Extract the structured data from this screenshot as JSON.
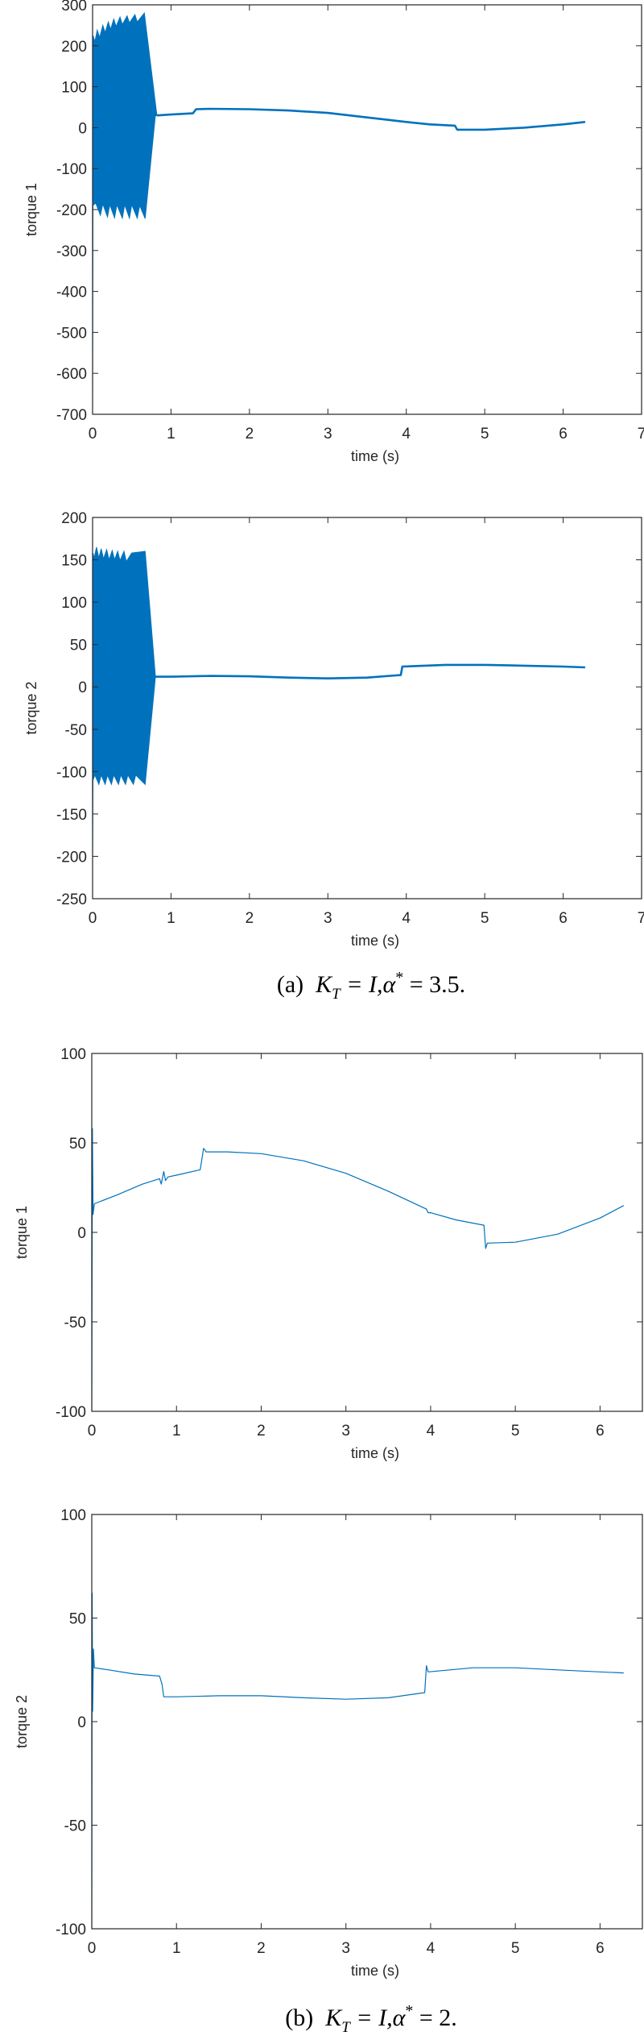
{
  "line_color": "#0072BD",
  "axis_color": "#262626",
  "captions": [
    {
      "label": "(a)",
      "var": "K",
      "sub": "T",
      "mid": "= I,α",
      "sup": "*",
      "rest": "= 3.5."
    },
    {
      "label": "(b)",
      "var": "K",
      "sub": "T",
      "mid": "= I,α",
      "sup": "*",
      "rest": "= 2."
    }
  ],
  "chart_data": [
    {
      "type": "line",
      "panel": "(a)",
      "xlabel": "time (s)",
      "ylabel": "torque 1",
      "xlim": [
        0,
        7
      ],
      "ylim": [
        -700,
        300
      ],
      "xticks": [
        "0",
        "1",
        "2",
        "3",
        "4",
        "5",
        "6",
        "7"
      ],
      "yticks": [
        "-700",
        "-600",
        "-500",
        "-400",
        "-300",
        "-200",
        "-100",
        "0",
        "100",
        "200",
        "300"
      ],
      "grid": false,
      "oscillation_band": {
        "upper": [
          [
            0,
            -700
          ],
          [
            0.005,
            225
          ],
          [
            0.03,
            210
          ],
          [
            0.06,
            238
          ],
          [
            0.09,
            220
          ],
          [
            0.13,
            250
          ],
          [
            0.16,
            232
          ],
          [
            0.2,
            258
          ],
          [
            0.23,
            240
          ],
          [
            0.27,
            265
          ],
          [
            0.3,
            247
          ],
          [
            0.35,
            270
          ],
          [
            0.38,
            252
          ],
          [
            0.44,
            273
          ],
          [
            0.47,
            256
          ],
          [
            0.54,
            276
          ],
          [
            0.57,
            258
          ],
          [
            0.66,
            280
          ],
          [
            0.82,
            30
          ]
        ],
        "lower": [
          [
            0,
            -700
          ],
          [
            0.005,
            -190
          ],
          [
            0.04,
            -184
          ],
          [
            0.1,
            -214
          ],
          [
            0.13,
            -186
          ],
          [
            0.19,
            -218
          ],
          [
            0.22,
            -188
          ],
          [
            0.28,
            -220
          ],
          [
            0.31,
            -188
          ],
          [
            0.38,
            -221
          ],
          [
            0.41,
            -188
          ],
          [
            0.47,
            -221
          ],
          [
            0.5,
            -188
          ],
          [
            0.57,
            -221
          ],
          [
            0.6,
            -190
          ],
          [
            0.67,
            -222
          ],
          [
            0.8,
            28
          ]
        ]
      },
      "x": [
        0.82,
        1.0,
        1.28,
        1.32,
        1.5,
        2.0,
        2.5,
        3.0,
        3.5,
        4.0,
        4.3,
        4.62,
        4.65,
        5.0,
        5.5,
        6.0,
        6.28
      ],
      "y": [
        30,
        32,
        35,
        45,
        46,
        45,
        42,
        36,
        25,
        14,
        8,
        5,
        -5,
        -5,
        0,
        8,
        14
      ]
    },
    {
      "type": "line",
      "panel": "(a)",
      "xlabel": "time (s)",
      "ylabel": "torque 2",
      "xlim": [
        0,
        7
      ],
      "ylim": [
        -250,
        200
      ],
      "xticks": [
        "0",
        "1",
        "2",
        "3",
        "4",
        "5",
        "6",
        "7"
      ],
      "yticks": [
        "-250",
        "-200",
        "-150",
        "-100",
        "-50",
        "0",
        "50",
        "100",
        "150",
        "200"
      ],
      "grid": false,
      "oscillation_band": {
        "upper": [
          [
            0,
            -215
          ],
          [
            0.005,
            158
          ],
          [
            0.02,
            152
          ],
          [
            0.05,
            165
          ],
          [
            0.08,
            152
          ],
          [
            0.11,
            163
          ],
          [
            0.14,
            151
          ],
          [
            0.18,
            162
          ],
          [
            0.21,
            150
          ],
          [
            0.25,
            161
          ],
          [
            0.28,
            150
          ],
          [
            0.32,
            160
          ],
          [
            0.35,
            149
          ],
          [
            0.4,
            160
          ],
          [
            0.43,
            148
          ],
          [
            0.5,
            158
          ],
          [
            0.67,
            160
          ],
          [
            0.8,
            14
          ]
        ],
        "lower": [
          [
            0,
            -215
          ],
          [
            0.005,
            -110
          ],
          [
            0.03,
            -104
          ],
          [
            0.08,
            -115
          ],
          [
            0.11,
            -104
          ],
          [
            0.16,
            -115
          ],
          [
            0.19,
            -104
          ],
          [
            0.24,
            -115
          ],
          [
            0.27,
            -104
          ],
          [
            0.33,
            -115
          ],
          [
            0.36,
            -104
          ],
          [
            0.42,
            -115
          ],
          [
            0.45,
            -104
          ],
          [
            0.52,
            -115
          ],
          [
            0.55,
            -104
          ],
          [
            0.67,
            -115
          ],
          [
            0.8,
            10
          ]
        ]
      },
      "x": [
        0.8,
        1.0,
        1.5,
        2.0,
        2.5,
        3.0,
        3.5,
        3.93,
        3.95,
        4.5,
        5.0,
        5.5,
        6.0,
        6.28
      ],
      "y": [
        12,
        12,
        13,
        12.5,
        11,
        10,
        11,
        14,
        24,
        26,
        26,
        25,
        24,
        23
      ]
    },
    {
      "type": "line",
      "panel": "(b)",
      "xlabel": "time (s)",
      "ylabel": "torque 1",
      "xlim": [
        0,
        6.5
      ],
      "ylim": [
        -100,
        100
      ],
      "xticks": [
        "0",
        "1",
        "2",
        "3",
        "4",
        "5",
        "6"
      ],
      "yticks": [
        "-100",
        "-50",
        "0",
        "50",
        "100"
      ],
      "grid": false,
      "x": [
        0,
        0.008,
        0.015,
        0.03,
        0.3,
        0.6,
        0.8,
        0.82,
        0.85,
        0.87,
        0.9,
        1.0,
        1.28,
        1.32,
        1.35,
        1.6,
        2.0,
        2.5,
        3.0,
        3.5,
        3.95,
        3.97,
        4.0,
        4.3,
        4.63,
        4.65,
        4.67,
        5.0,
        5.5,
        6.0,
        6.28
      ],
      "y": [
        -100,
        58,
        10,
        16,
        21,
        27,
        30,
        27,
        34,
        29,
        31,
        32,
        35,
        47,
        45,
        45,
        44,
        40,
        33,
        23,
        13,
        11,
        11,
        7,
        4,
        -9,
        -6,
        -5.5,
        -1,
        8,
        15
      ]
    },
    {
      "type": "line",
      "panel": "(b)",
      "xlabel": "time (s)",
      "ylabel": "torque 2",
      "xlim": [
        0,
        6.5
      ],
      "ylim": [
        -100,
        100
      ],
      "xticks": [
        "0",
        "1",
        "2",
        "3",
        "4",
        "5",
        "6"
      ],
      "yticks": [
        "-100",
        "-50",
        "0",
        "50",
        "100"
      ],
      "grid": false,
      "x": [
        0,
        0.005,
        0.01,
        0.02,
        0.03,
        0.2,
        0.5,
        0.8,
        0.83,
        0.85,
        0.87,
        1.0,
        1.5,
        2.0,
        2.5,
        3.0,
        3.5,
        3.93,
        3.95,
        3.97,
        4.5,
        5.0,
        5.5,
        6.0,
        6.28
      ],
      "y": [
        -100,
        62,
        5,
        35,
        26,
        25,
        23,
        22,
        18,
        12,
        12,
        12,
        12.5,
        12.5,
        11.5,
        10.8,
        11.5,
        14,
        27,
        24,
        26,
        26,
        25,
        24,
        23.5
      ]
    }
  ]
}
